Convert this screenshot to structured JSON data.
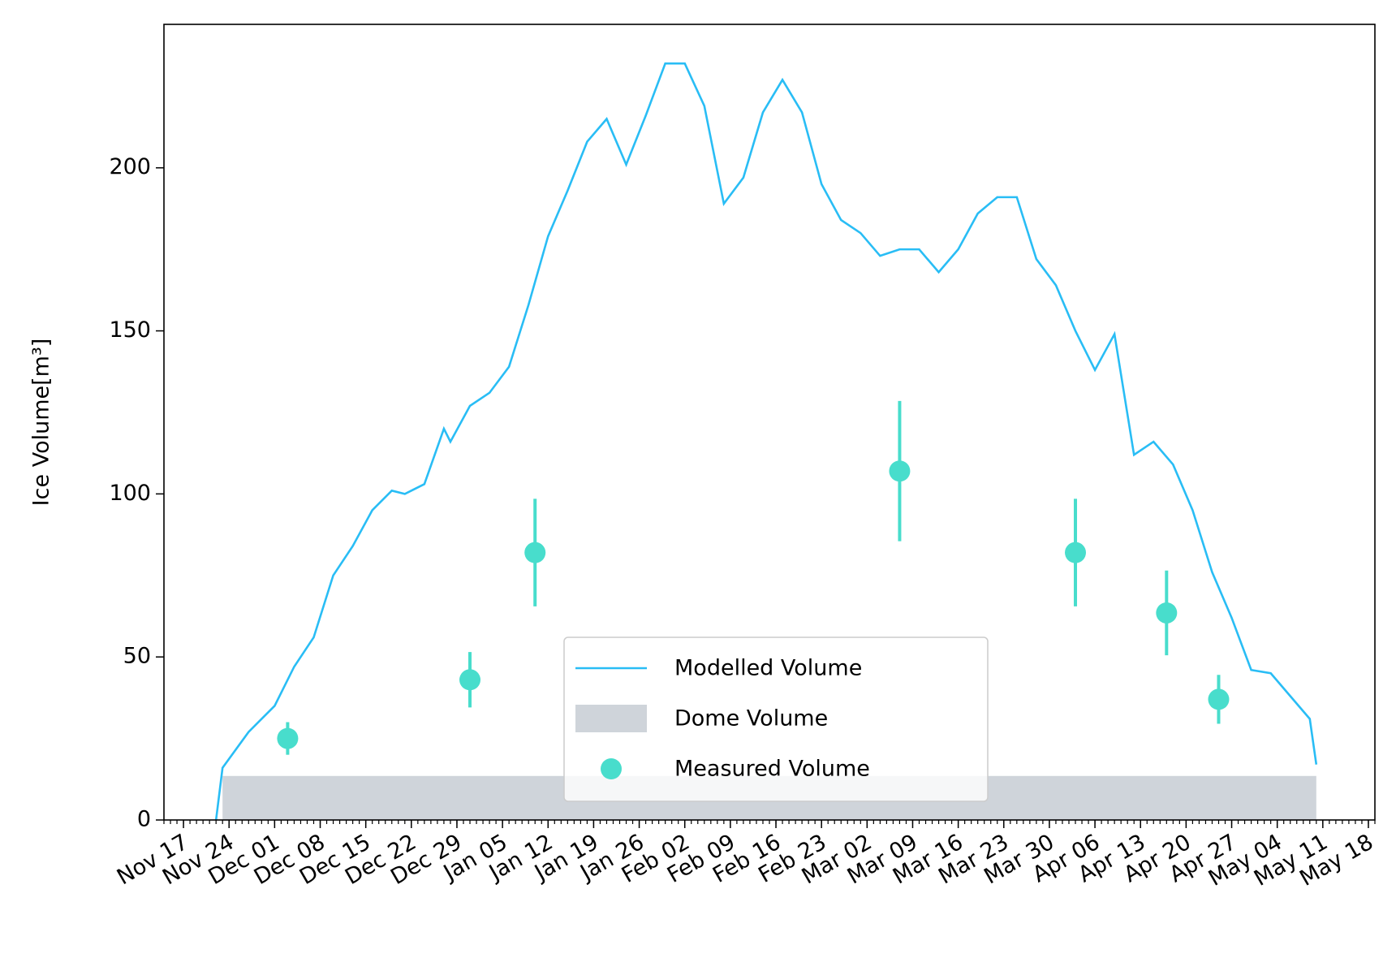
{
  "chart_data": {
    "type": "line",
    "ylabel": "Ice Volume[m³]",
    "xlim": [
      "Nov 14",
      "May 19"
    ],
    "xticks": [
      "Nov 17",
      "Nov 24",
      "Dec 01",
      "Dec 08",
      "Dec 15",
      "Dec 22",
      "Dec 29",
      "Jan 05",
      "Jan 12",
      "Jan 19",
      "Jan 26",
      "Feb 02",
      "Feb 09",
      "Feb 16",
      "Feb 23",
      "Mar 02",
      "Mar 09",
      "Mar 16",
      "Mar 23",
      "Mar 30",
      "Apr 06",
      "Apr 13",
      "Apr 20",
      "Apr 27",
      "May 04",
      "May 11",
      "May 18"
    ],
    "ylim": [
      0,
      244
    ],
    "yticks": [
      0,
      50,
      100,
      150,
      200
    ],
    "legend": "lower center",
    "series": [
      {
        "name": "Modelled Volume",
        "type": "line",
        "color": "#29bdf5",
        "x": [
          "Nov 22",
          "Nov 23",
          "Nov 27",
          "Dec 01",
          "Dec 04",
          "Dec 07",
          "Dec 10",
          "Dec 13",
          "Dec 16",
          "Dec 19",
          "Dec 21",
          "Dec 24",
          "Dec 27",
          "Dec 28",
          "Dec 31",
          "Jan 03",
          "Jan 06",
          "Jan 09",
          "Jan 12",
          "Jan 15",
          "Jan 18",
          "Jan 21",
          "Jan 24",
          "Jan 27",
          "Jan 30",
          "Feb 02",
          "Feb 05",
          "Feb 08",
          "Feb 11",
          "Feb 14",
          "Feb 17",
          "Feb 20",
          "Feb 23",
          "Feb 26",
          "Mar 01",
          "Mar 04",
          "Mar 07",
          "Mar 10",
          "Mar 13",
          "Mar 16",
          "Mar 19",
          "Mar 22",
          "Mar 25",
          "Mar 28",
          "Mar 31",
          "Apr 03",
          "Apr 06",
          "Apr 09",
          "Apr 12",
          "Apr 15",
          "Apr 18",
          "Apr 21",
          "Apr 24",
          "Apr 27",
          "Apr 30",
          "May 03",
          "May 06",
          "May 09",
          "May 10"
        ],
        "values": [
          0,
          16,
          27,
          35,
          47,
          56,
          75,
          84,
          95,
          101,
          100,
          103,
          120,
          116,
          127,
          131,
          139,
          158,
          179,
          193,
          208,
          215,
          201,
          216,
          232,
          232,
          219,
          189,
          197,
          217,
          227,
          217,
          195,
          184,
          180,
          173,
          175,
          175,
          168,
          175,
          186,
          191,
          191,
          172,
          164,
          150,
          138,
          149,
          112,
          116,
          109,
          95,
          76,
          62,
          46,
          45,
          38,
          31,
          17
        ]
      },
      {
        "name": "Dome Volume",
        "type": "band",
        "color": "#cfd4da",
        "x": [
          "Nov 23",
          "May 10"
        ],
        "values": [
          13.5,
          13.5
        ]
      },
      {
        "name": "Measured Volume",
        "type": "errorbar",
        "color": "#48ddcc",
        "x": [
          "Dec 03",
          "Dec 31",
          "Jan 10",
          "Mar 07",
          "Apr 03",
          "Apr 17",
          "Apr 25"
        ],
        "values": [
          25,
          43,
          82,
          107,
          82,
          63.5,
          37
        ],
        "errors": [
          5,
          8.5,
          16.5,
          21.5,
          16.5,
          13,
          7.5
        ]
      }
    ]
  }
}
